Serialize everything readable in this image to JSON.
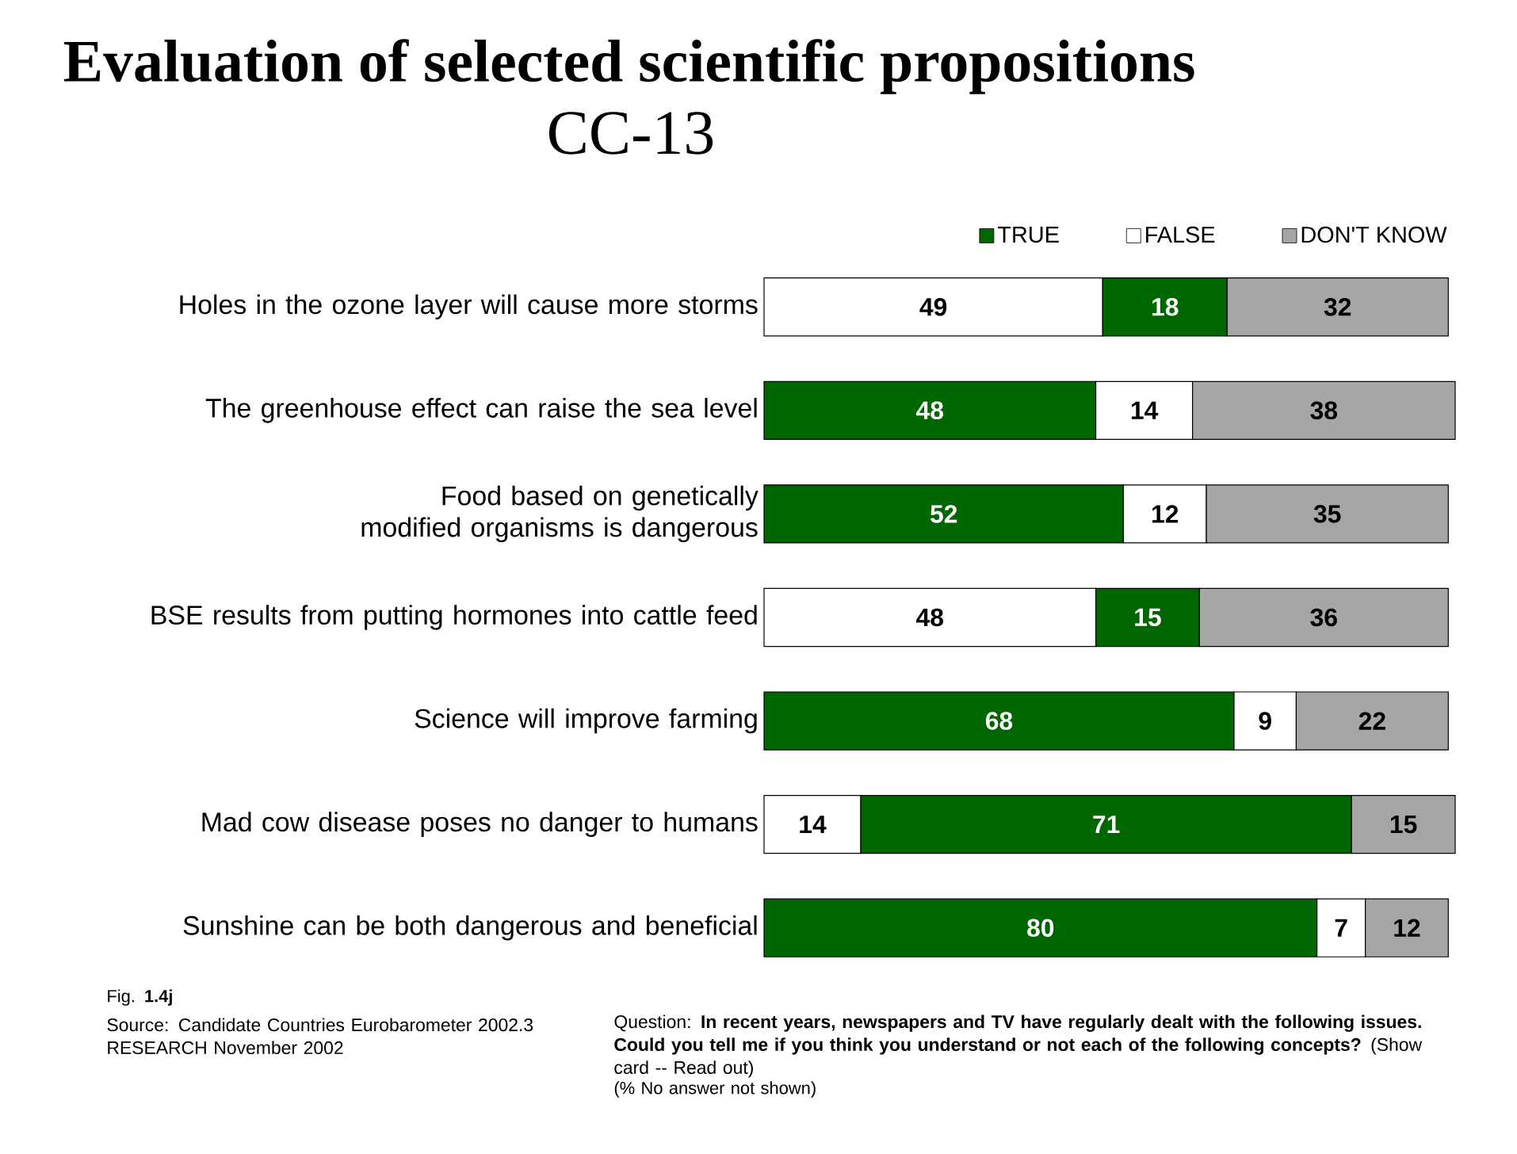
{
  "chart_data": {
    "type": "bar",
    "orientation": "horizontal",
    "stacked": true,
    "title": "Evaluation of selected scientific propositions",
    "subtitle": "CC-13",
    "categories": [
      "Holes in the ozone layer will cause more storms",
      "The greenhouse effect can raise the sea level",
      "Food based on genetically modified organisms is dangerous",
      "BSE results from putting hormones into cattle feed",
      "Science will improve farming",
      "Mad cow disease poses no danger to humans",
      "Sunshine can be both dangerous and beneficial"
    ],
    "series": [
      {
        "color": "#ffffff",
        "values": [
          49,
          null,
          null,
          48,
          null,
          14,
          null
        ]
      },
      {
        "name": "TRUE",
        "color": "#006600",
        "values": [
          18,
          48,
          52,
          15,
          68,
          71,
          80
        ]
      },
      {
        "name": "FALSE",
        "color": "#ffffff",
        "values": [
          null,
          14,
          12,
          null,
          9,
          null,
          7
        ]
      },
      {
        "name": "DON'T KNOW",
        "color": "#a6a6a6",
        "values": [
          32,
          38,
          35,
          36,
          22,
          15,
          12
        ]
      }
    ],
    "data_labels": true,
    "legend": "top right",
    "annotations": [
      "Fig. **1.4j**",
      "Source: Candidate Countries Eurobarometer 2002.3 RESEARCH November  2002",
      "Question: **In recent years, newspapers and TV have regularly dealt with the following issues. Could you tell me if you think you understand or not each of the following concepts?** (Show card -- Read out)",
      "(% No answer not shown)"
    ]
  }
}
